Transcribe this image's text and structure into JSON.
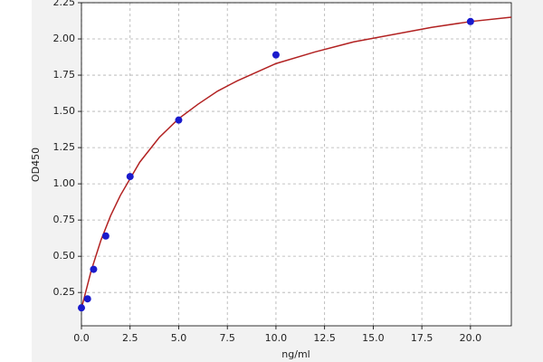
{
  "chart_data": {
    "type": "scatter",
    "x_label": "ng/ml",
    "y_label": "OD450",
    "x": [
      0,
      0.3125,
      0.625,
      1.25,
      2.5,
      5,
      10,
      20
    ],
    "values": [
      0.144,
      0.206,
      0.41,
      0.64,
      1.05,
      1.44,
      1.89,
      2.12
    ],
    "color": "#1a1acc",
    "fit": {
      "type": "line",
      "color": "#b22222",
      "x": [
        0,
        0.5,
        1,
        1.5,
        2,
        3,
        4,
        5,
        6,
        7,
        8,
        10,
        12,
        14,
        16,
        18,
        20,
        22.1
      ],
      "values": [
        0.14,
        0.4,
        0.61,
        0.78,
        0.92,
        1.15,
        1.32,
        1.45,
        1.55,
        1.64,
        1.71,
        1.83,
        1.91,
        1.98,
        2.03,
        2.08,
        2.12,
        2.15
      ]
    },
    "xlim": [
      0,
      22.1
    ],
    "ylim": [
      0.02,
      2.25
    ],
    "xticks": [
      {
        "value": 0,
        "label": "0.0"
      },
      2.5,
      {
        "value": 5,
        "label": "5.0"
      },
      7.5,
      {
        "value": 10,
        "label": "10.0"
      },
      12.5,
      {
        "value": 15,
        "label": "15.0"
      },
      17.5,
      {
        "value": 20,
        "label": "20.0"
      }
    ],
    "yticks": [
      0.25,
      {
        "value": 0.5,
        "label": "0.50"
      },
      0.75,
      {
        "value": 1,
        "label": "1.00"
      },
      1.25,
      {
        "value": 1.5,
        "label": "1.50"
      },
      1.75,
      {
        "value": 2,
        "label": "2.00"
      },
      2.25
    ],
    "grid": true
  }
}
